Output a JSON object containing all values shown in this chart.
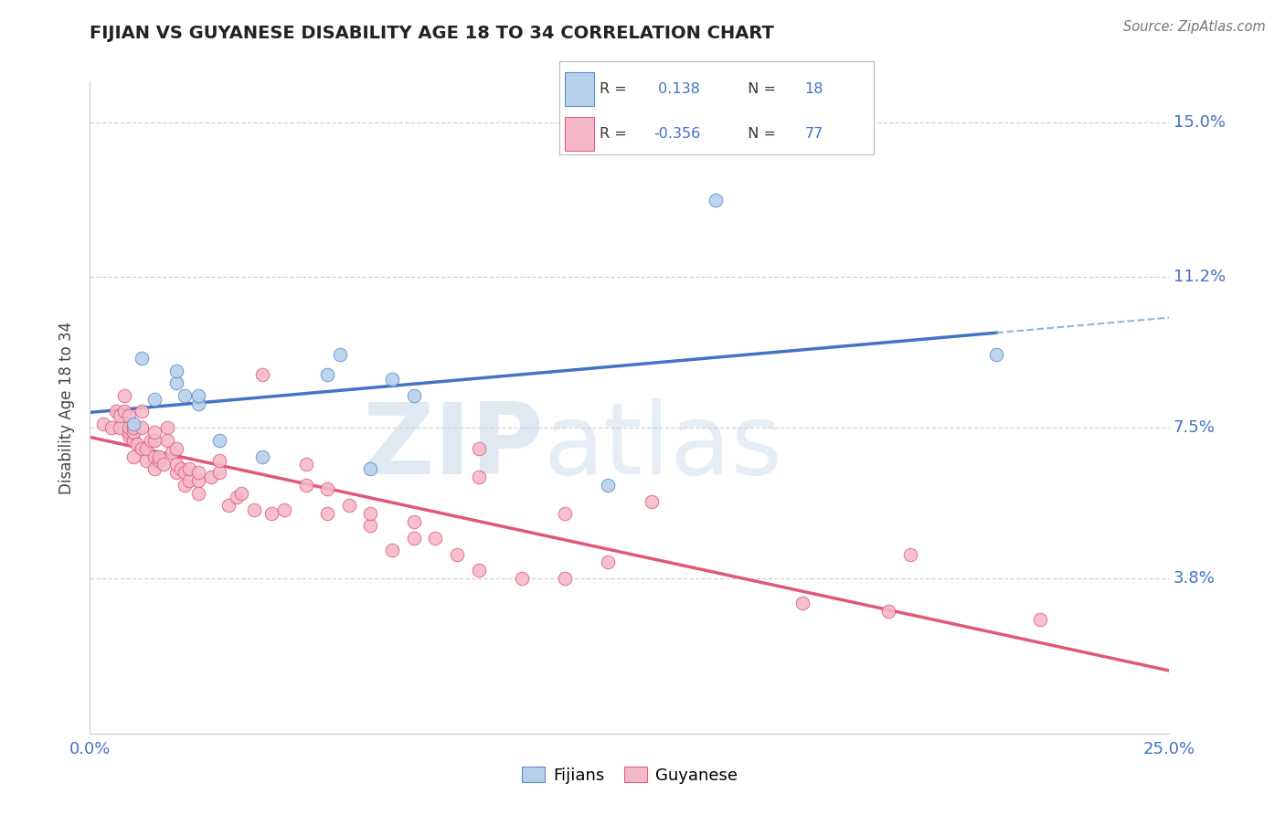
{
  "title": "FIJIAN VS GUYANESE DISABILITY AGE 18 TO 34 CORRELATION CHART",
  "source": "Source: ZipAtlas.com",
  "ylabel": "Disability Age 18 to 34",
  "xlim": [
    0.0,
    0.25
  ],
  "ylim": [
    0.0,
    0.16
  ],
  "ytick_values": [
    0.15,
    0.112,
    0.075,
    0.038
  ],
  "ytick_labels": [
    "15.0%",
    "11.2%",
    "7.5%",
    "3.8%"
  ],
  "xtick_values": [
    0.0,
    0.25
  ],
  "xtick_labels": [
    "0.0%",
    "25.0%"
  ],
  "fijian_R": 0.138,
  "fijian_N": 18,
  "guyanese_R": -0.356,
  "guyanese_N": 77,
  "fijian_face_color": "#b8d0ea",
  "fijian_edge_color": "#5b8fc9",
  "guyanese_face_color": "#f5b8c8",
  "guyanese_edge_color": "#e06080",
  "fijian_line_color": "#4472c4",
  "guyanese_line_color": "#e05878",
  "trend_dash_color": "#90b8d8",
  "grid_color": "#cccccc",
  "background_color": "#ffffff",
  "watermark_color": "#ccdde8",
  "legend_text_color": "#4472c4",
  "legend_label_color": "#333333",
  "fijian_x": [
    0.01,
    0.012,
    0.015,
    0.02,
    0.02,
    0.022,
    0.025,
    0.025,
    0.03,
    0.04,
    0.055,
    0.058,
    0.065,
    0.07,
    0.075,
    0.12,
    0.145,
    0.21
  ],
  "fijian_y": [
    0.076,
    0.092,
    0.082,
    0.086,
    0.089,
    0.083,
    0.081,
    0.083,
    0.072,
    0.068,
    0.088,
    0.093,
    0.065,
    0.087,
    0.083,
    0.061,
    0.131,
    0.093
  ],
  "guyanese_x": [
    0.003,
    0.005,
    0.006,
    0.007,
    0.007,
    0.008,
    0.008,
    0.009,
    0.009,
    0.009,
    0.009,
    0.01,
    0.01,
    0.01,
    0.01,
    0.011,
    0.012,
    0.012,
    0.012,
    0.013,
    0.013,
    0.014,
    0.015,
    0.015,
    0.015,
    0.015,
    0.016,
    0.016,
    0.017,
    0.018,
    0.018,
    0.019,
    0.02,
    0.02,
    0.02,
    0.021,
    0.022,
    0.022,
    0.023,
    0.023,
    0.025,
    0.025,
    0.025,
    0.028,
    0.03,
    0.03,
    0.032,
    0.034,
    0.035,
    0.038,
    0.04,
    0.042,
    0.045,
    0.05,
    0.05,
    0.055,
    0.055,
    0.06,
    0.065,
    0.065,
    0.07,
    0.075,
    0.075,
    0.08,
    0.085,
    0.09,
    0.09,
    0.09,
    0.1,
    0.11,
    0.11,
    0.12,
    0.13,
    0.165,
    0.185,
    0.19,
    0.22
  ],
  "guyanese_y": [
    0.076,
    0.075,
    0.079,
    0.075,
    0.078,
    0.079,
    0.083,
    0.073,
    0.074,
    0.075,
    0.078,
    0.068,
    0.072,
    0.074,
    0.075,
    0.071,
    0.07,
    0.075,
    0.079,
    0.067,
    0.07,
    0.072,
    0.065,
    0.068,
    0.072,
    0.074,
    0.067,
    0.068,
    0.066,
    0.072,
    0.075,
    0.069,
    0.064,
    0.066,
    0.07,
    0.065,
    0.061,
    0.064,
    0.062,
    0.065,
    0.059,
    0.062,
    0.064,
    0.063,
    0.064,
    0.067,
    0.056,
    0.058,
    0.059,
    0.055,
    0.088,
    0.054,
    0.055,
    0.061,
    0.066,
    0.054,
    0.06,
    0.056,
    0.051,
    0.054,
    0.045,
    0.048,
    0.052,
    0.048,
    0.044,
    0.04,
    0.063,
    0.07,
    0.038,
    0.038,
    0.054,
    0.042,
    0.057,
    0.032,
    0.03,
    0.044,
    0.028
  ]
}
